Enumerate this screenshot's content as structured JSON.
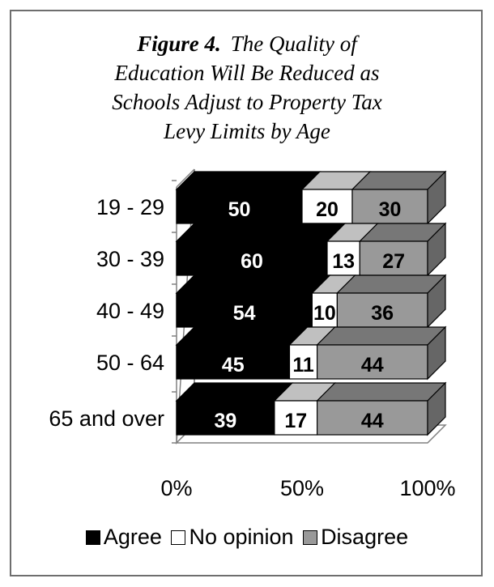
{
  "title": {
    "figure": "Figure 4.",
    "lines": [
      "The Quality of",
      "Education Will Be Reduced as",
      "Schools Adjust to Property Tax",
      "Levy Limits by Age"
    ]
  },
  "chart_data": {
    "type": "bar",
    "orientation": "horizontal",
    "stacked": true,
    "three_d": true,
    "categories": [
      "19 - 29",
      "30 - 39",
      "40 - 49",
      "50 - 64",
      "65 and over"
    ],
    "series": [
      {
        "name": "Agree",
        "values": [
          50,
          60,
          54,
          45,
          39
        ],
        "color": "#000000"
      },
      {
        "name": "No opinion",
        "values": [
          20,
          13,
          10,
          11,
          17
        ],
        "color": "#ffffff"
      },
      {
        "name": "Disagree",
        "values": [
          30,
          27,
          36,
          44,
          44
        ],
        "color": "#999999"
      }
    ],
    "xticks": [
      "0%",
      "50%",
      "100%"
    ],
    "xlim": [
      0,
      100
    ],
    "legend_position": "bottom"
  },
  "legend": {
    "labels": [
      "Agree",
      "No opinion",
      "Disagree"
    ]
  }
}
